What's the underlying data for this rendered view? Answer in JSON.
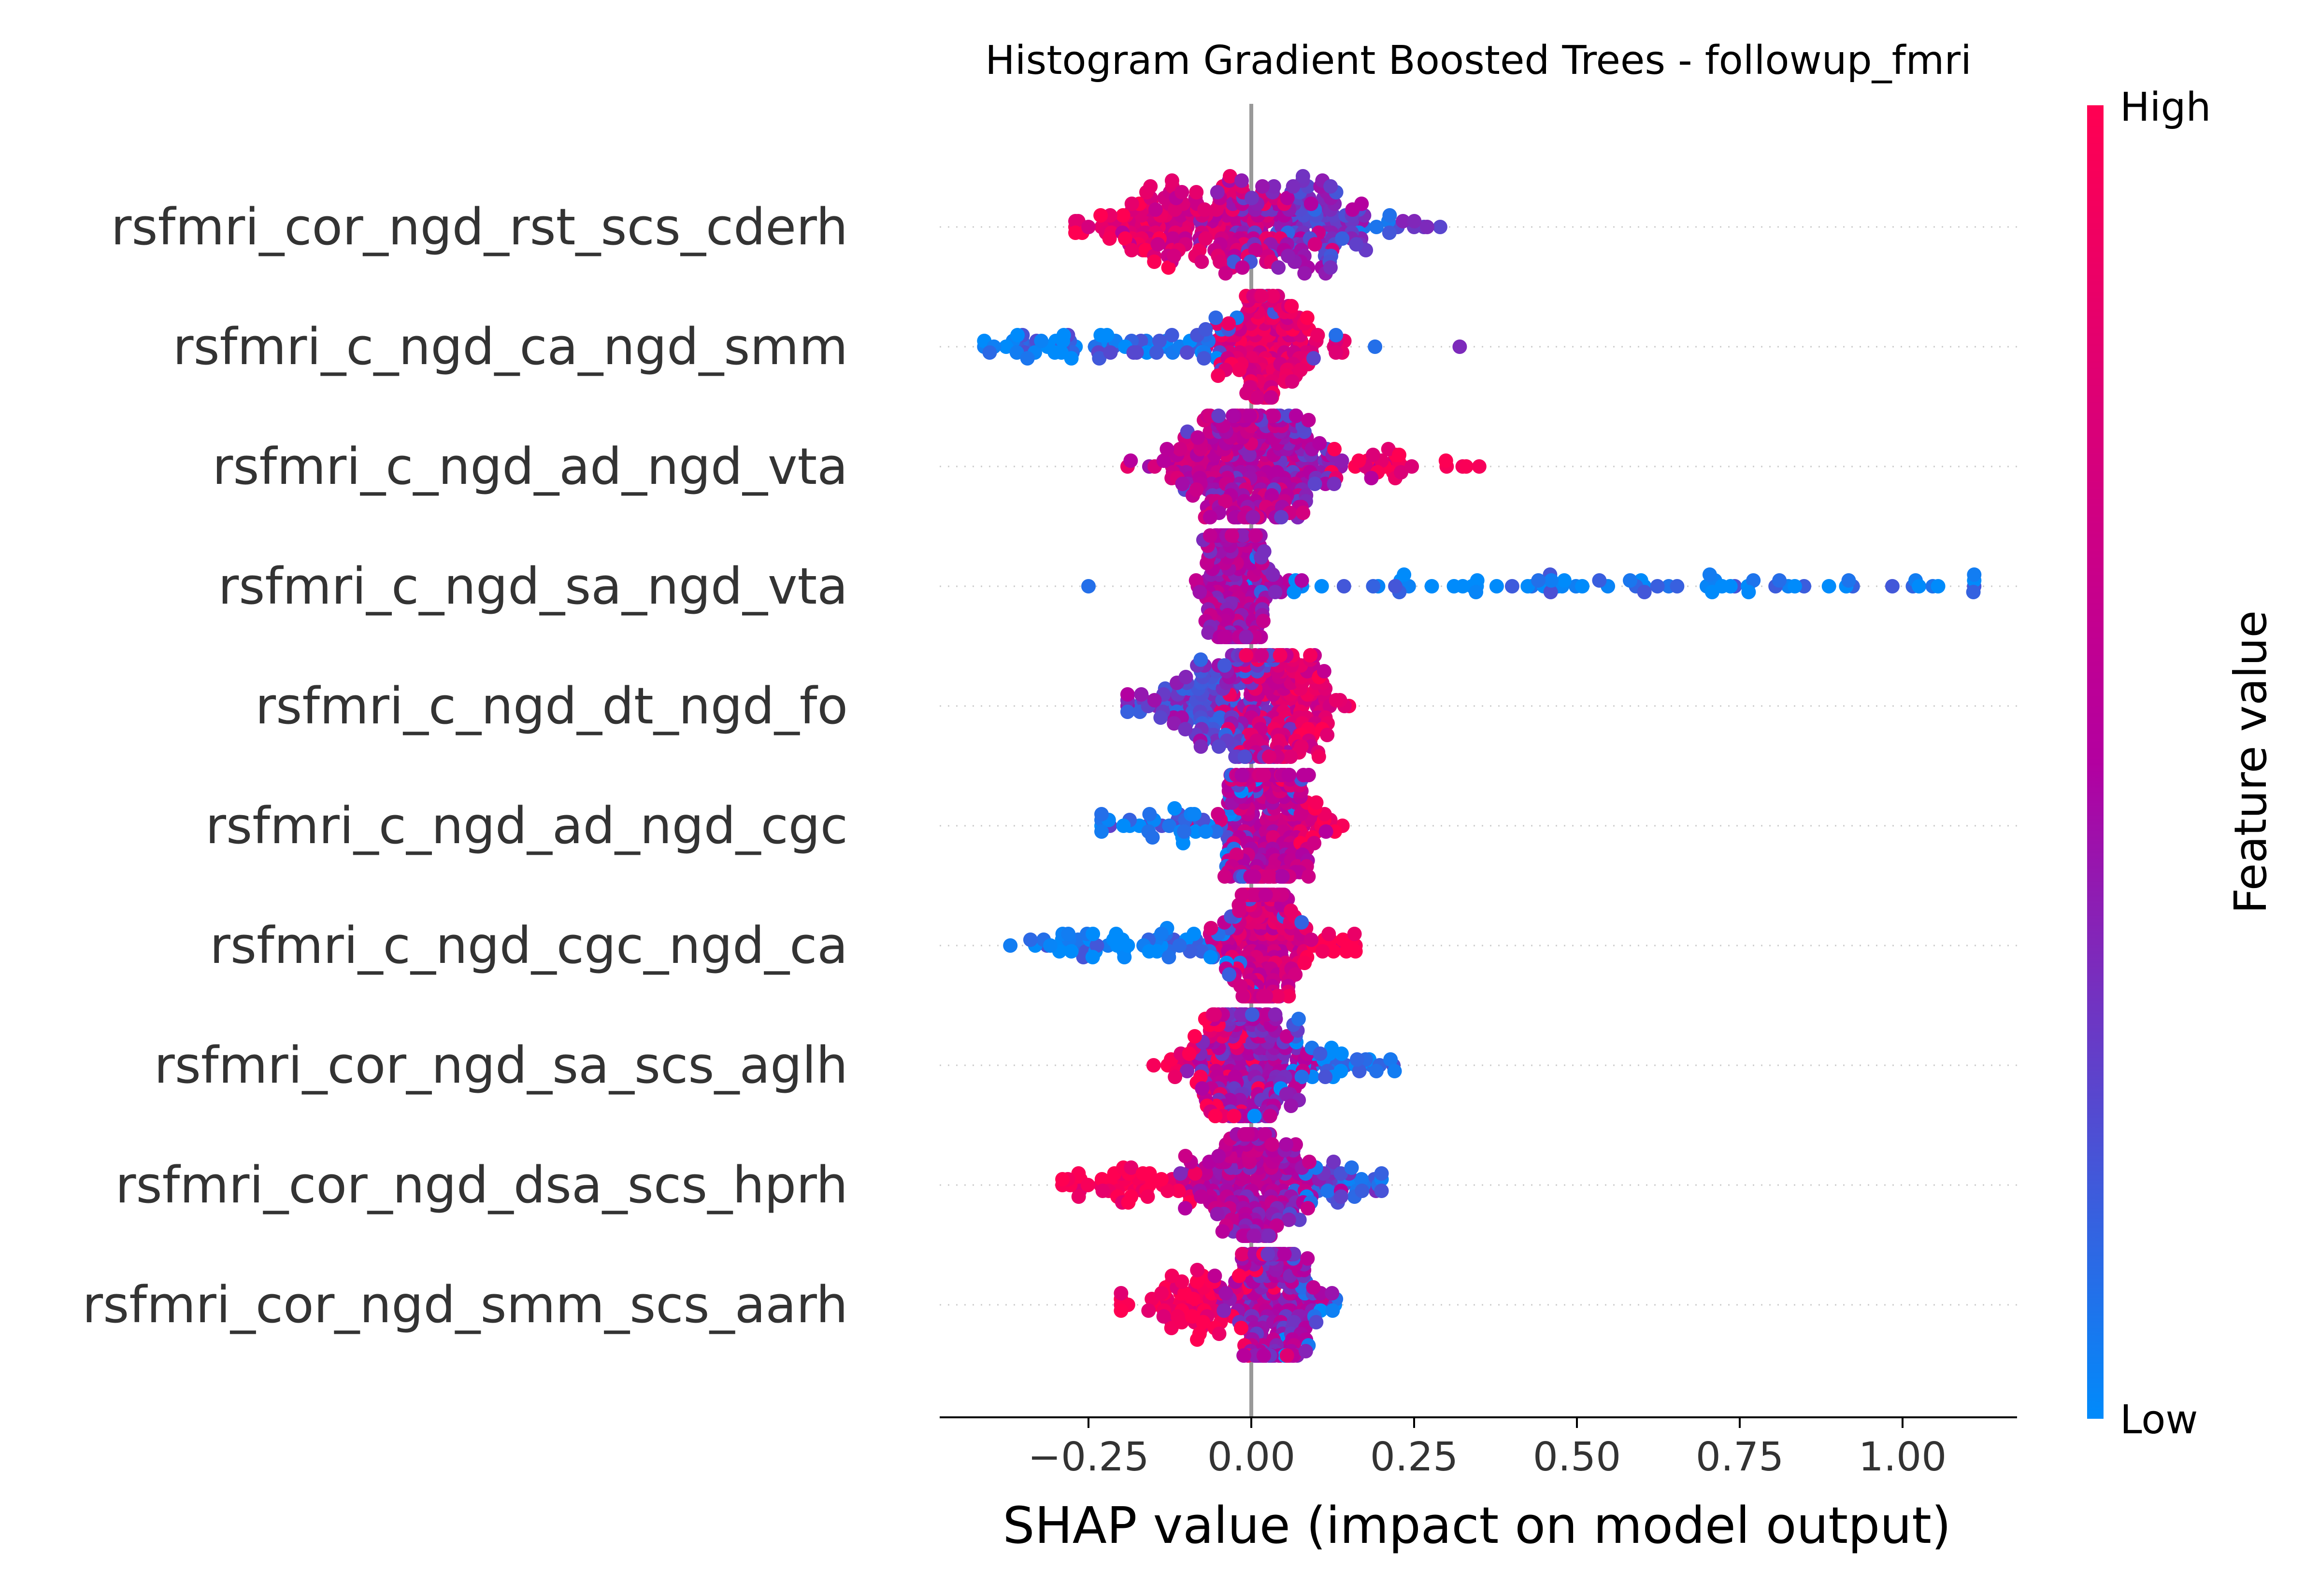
{
  "chart_data": {
    "type": "scatter",
    "subtype": "shap-beeswarm-summary",
    "title": "Histogram Gradient Boosted Trees - followup_fmri",
    "xlabel": "SHAP value (impact on model output)",
    "ylabel": "",
    "xlim": [
      -0.48,
      1.19
    ],
    "x_ticks": [
      -0.25,
      0.0,
      0.25,
      0.5,
      0.75,
      1.0
    ],
    "x_tick_labels": [
      "−0.25",
      "0.00",
      "0.25",
      "0.50",
      "0.75",
      "1.00"
    ],
    "grid": false,
    "legend": "colorbar-right",
    "colorbar": {
      "label": "Feature value",
      "high_label": "High",
      "low_label": "Low",
      "high_color": "#ff0052",
      "mid_color": "#b300a0",
      "low_color": "#008bfb"
    },
    "features": [
      {
        "name": "rsfmri_cor_ngd_rst_scs_cderh",
        "x_range": [
          -0.27,
          0.29
        ],
        "clusters": [
          {
            "center": -0.07,
            "spread": 0.07,
            "count": 150,
            "feature_value": 0.72
          },
          {
            "center": 0.07,
            "spread": 0.06,
            "count": 120,
            "feature_value": 0.35
          },
          {
            "center": -0.2,
            "spread": 0.04,
            "count": 30,
            "feature_value": 0.95
          },
          {
            "center": 0.18,
            "spread": 0.05,
            "count": 25,
            "feature_value": 0.22
          }
        ],
        "outliers": [
          {
            "x": -0.27,
            "feature_value": 0.95
          },
          {
            "x": 0.25,
            "feature_value": 0.3
          },
          {
            "x": 0.27,
            "feature_value": 0.35
          },
          {
            "x": 0.29,
            "feature_value": 0.25
          }
        ]
      },
      {
        "name": "rsfmri_c_ngd_ca_ngd_smm",
        "x_range": [
          -0.41,
          0.32
        ],
        "clusters": [
          {
            "center": 0.02,
            "spread": 0.035,
            "count": 140,
            "feature_value": 0.8
          },
          {
            "center": -0.15,
            "spread": 0.1,
            "count": 60,
            "feature_value": 0.1
          },
          {
            "center": -0.32,
            "spread": 0.05,
            "count": 20,
            "feature_value": 0.05
          },
          {
            "center": 0.09,
            "spread": 0.04,
            "count": 20,
            "feature_value": 0.9
          }
        ],
        "outliers": [
          {
            "x": -0.41,
            "feature_value": 0.05
          },
          {
            "x": -0.36,
            "feature_value": 0.05
          },
          {
            "x": 0.13,
            "feature_value": 0.1
          },
          {
            "x": 0.19,
            "feature_value": 0.1
          },
          {
            "x": 0.32,
            "feature_value": 0.35
          }
        ]
      },
      {
        "name": "rsfmri_c_ngd_ad_ngd_vta",
        "x_range": [
          -0.19,
          0.35
        ],
        "clusters": [
          {
            "center": -0.03,
            "spread": 0.06,
            "count": 180,
            "feature_value": 0.6
          },
          {
            "center": 0.05,
            "spread": 0.05,
            "count": 110,
            "feature_value": 0.4
          },
          {
            "center": 0.2,
            "spread": 0.05,
            "count": 25,
            "feature_value": 0.9
          }
        ],
        "outliers": [
          {
            "x": -0.19,
            "feature_value": 0.85
          },
          {
            "x": 0.3,
            "feature_value": 0.95
          },
          {
            "x": 0.33,
            "feature_value": 0.97
          },
          {
            "x": 0.35,
            "feature_value": 0.95
          }
        ]
      },
      {
        "name": "rsfmri_c_ngd_sa_ngd_vta",
        "x_range": [
          -0.25,
          1.11
        ],
        "clusters": [
          {
            "center": -0.02,
            "spread": 0.03,
            "count": 220,
            "feature_value": 0.5
          },
          {
            "center": 0.15,
            "spread": 0.1,
            "count": 20,
            "feature_value": 0.05
          },
          {
            "center": 0.4,
            "spread": 0.12,
            "count": 30,
            "feature_value": 0.05
          },
          {
            "center": 0.82,
            "spread": 0.15,
            "count": 30,
            "feature_value": 0.05
          }
        ],
        "outliers": [
          {
            "x": -0.25,
            "feature_value": 0.1
          },
          {
            "x": 1.02,
            "feature_value": 0.05
          },
          {
            "x": 1.11,
            "feature_value": 0.05
          }
        ]
      },
      {
        "name": "rsfmri_c_ngd_dt_ngd_fo",
        "x_range": [
          -0.19,
          0.15
        ],
        "clusters": [
          {
            "center": -0.05,
            "spread": 0.055,
            "count": 150,
            "feature_value": 0.3
          },
          {
            "center": 0.04,
            "spread": 0.04,
            "count": 150,
            "feature_value": 0.75
          },
          {
            "center": 0.12,
            "spread": 0.025,
            "count": 20,
            "feature_value": 0.95
          }
        ],
        "outliers": [
          {
            "x": -0.19,
            "feature_value": 0.5
          },
          {
            "x": 0.15,
            "feature_value": 0.95
          }
        ]
      },
      {
        "name": "rsfmri_c_ngd_ad_ngd_cgc",
        "x_range": [
          -0.23,
          0.14
        ],
        "clusters": [
          {
            "center": 0.02,
            "spread": 0.035,
            "count": 220,
            "feature_value": 0.6
          },
          {
            "center": -0.08,
            "spread": 0.07,
            "count": 60,
            "feature_value": 0.1
          },
          {
            "center": 0.1,
            "spread": 0.025,
            "count": 15,
            "feature_value": 0.95
          }
        ],
        "outliers": [
          {
            "x": -0.23,
            "feature_value": 0.1
          },
          {
            "x": 0.14,
            "feature_value": 0.95
          }
        ]
      },
      {
        "name": "rsfmri_c_ngd_cgc_ngd_ca",
        "x_range": [
          -0.37,
          0.16
        ],
        "clusters": [
          {
            "center": 0.02,
            "spread": 0.03,
            "count": 200,
            "feature_value": 0.7
          },
          {
            "center": -0.12,
            "spread": 0.08,
            "count": 50,
            "feature_value": 0.05
          },
          {
            "center": -0.27,
            "spread": 0.04,
            "count": 20,
            "feature_value": 0.05
          },
          {
            "center": 0.11,
            "spread": 0.03,
            "count": 20,
            "feature_value": 0.95
          }
        ],
        "outliers": [
          {
            "x": -0.37,
            "feature_value": 0.05
          },
          {
            "x": 0.16,
            "feature_value": 0.95
          }
        ]
      },
      {
        "name": "rsfmri_cor_ngd_sa_scs_aglh",
        "x_range": [
          -0.15,
          0.22
        ],
        "clusters": [
          {
            "center": 0.0,
            "spread": 0.04,
            "count": 180,
            "feature_value": 0.45
          },
          {
            "center": -0.07,
            "spread": 0.035,
            "count": 50,
            "feature_value": 0.9
          },
          {
            "center": 0.13,
            "spread": 0.045,
            "count": 40,
            "feature_value": 0.05
          }
        ],
        "outliers": [
          {
            "x": -0.15,
            "feature_value": 0.95
          },
          {
            "x": 0.22,
            "feature_value": 0.05
          }
        ]
      },
      {
        "name": "rsfmri_cor_ngd_dsa_scs_hprh",
        "x_range": [
          -0.29,
          0.2
        ],
        "clusters": [
          {
            "center": 0.0,
            "spread": 0.05,
            "count": 200,
            "feature_value": 0.5
          },
          {
            "center": -0.18,
            "spread": 0.05,
            "count": 50,
            "feature_value": 0.95
          },
          {
            "center": 0.13,
            "spread": 0.04,
            "count": 40,
            "feature_value": 0.2
          }
        ],
        "outliers": [
          {
            "x": -0.29,
            "feature_value": 0.97
          },
          {
            "x": 0.2,
            "feature_value": 0.2
          }
        ]
      },
      {
        "name": "rsfmri_cor_ngd_smm_scs_aarh",
        "x_range": [
          -0.2,
          0.13
        ],
        "clusters": [
          {
            "center": 0.03,
            "spread": 0.03,
            "count": 200,
            "feature_value": 0.45
          },
          {
            "center": -0.08,
            "spread": 0.05,
            "count": 80,
            "feature_value": 0.92
          },
          {
            "center": 0.09,
            "spread": 0.02,
            "count": 15,
            "feature_value": 0.1
          }
        ],
        "outliers": [
          {
            "x": -0.2,
            "feature_value": 0.95
          },
          {
            "x": 0.13,
            "feature_value": 0.1
          }
        ]
      }
    ]
  }
}
